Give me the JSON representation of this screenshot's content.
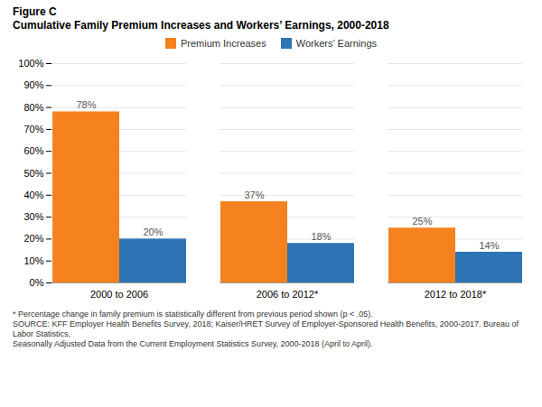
{
  "chart_data": {
    "type": "bar",
    "subtitle": "Figure C",
    "title": "Cumulative Family Premium Increases and Workers’ Earnings, 2000-2018",
    "categories": [
      "2000 to 2006",
      "2006 to 2012*",
      "2012 to 2018*"
    ],
    "series": [
      {
        "name": "Premium Increases",
        "color": "#F5821E",
        "values": [
          78,
          37,
          25
        ],
        "value_labels": [
          "78%",
          "37%",
          "25%"
        ]
      },
      {
        "name": "Workers’ Earnings",
        "color": "#2E75B6",
        "values": [
          20,
          18,
          14
        ],
        "value_labels": [
          "20%",
          "18%",
          "14%"
        ]
      }
    ],
    "ylim": [
      0,
      100
    ],
    "yticks": [
      {
        "value": 0,
        "label": "0%"
      },
      {
        "value": 10,
        "label": "10%"
      },
      {
        "value": 20,
        "label": "20%"
      },
      {
        "value": 30,
        "label": "30%"
      },
      {
        "value": 40,
        "label": "40%"
      },
      {
        "value": 50,
        "label": "50%"
      },
      {
        "value": 60,
        "label": "60%"
      },
      {
        "value": 70,
        "label": "70%"
      },
      {
        "value": 80,
        "label": "80%"
      },
      {
        "value": 90,
        "label": "90%"
      },
      {
        "value": 100,
        "label": "100%"
      }
    ],
    "grid": true,
    "legend": "top",
    "data_labels": true,
    "annotations": [
      "* Percentage change in family premium is statistically different from previous period shown (p < .05).",
      "SOURCE: KFF Employer Health Benefits Survey, 2018; Kaiser/HRET Survey of Employer-Sponsored Health Benefits, 2000-2017. Bureau of Labor Statistics,",
      "Seasonally Adjusted Data from the Current Employment Statistics Survey, 2000-2018 (April to April)."
    ]
  }
}
